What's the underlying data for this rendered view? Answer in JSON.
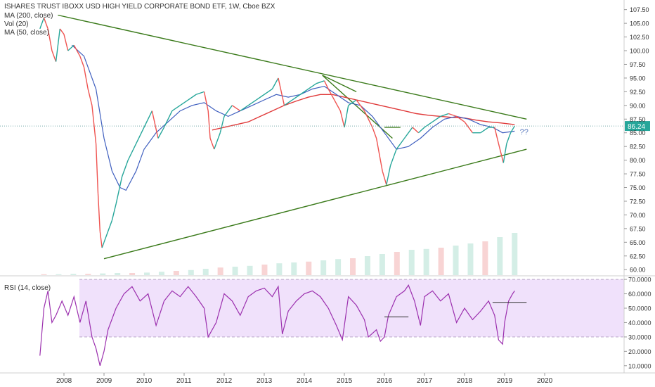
{
  "chart_data": {
    "type": "line",
    "title": "ISHARES TRUST IBOXX USD HIGH YIELD CORPORATE BOND ETF, 1W, Cboe BZX",
    "indicators": [
      "MA (200, close)",
      "Vol (20)",
      "MA (50, close)"
    ],
    "x_ticks": [
      "2008",
      "2009",
      "2010",
      "2011",
      "2012",
      "2013",
      "2014",
      "2015",
      "2016",
      "2017",
      "2018",
      "2019",
      "2020"
    ],
    "price_axis": {
      "range": [
        59,
        109
      ],
      "ticks": [
        "107.50",
        "105.00",
        "102.50",
        "100.00",
        "97.50",
        "95.00",
        "92.50",
        "90.00",
        "87.50",
        "85.00",
        "82.50",
        "80.00",
        "77.50",
        "75.00",
        "72.50",
        "70.00",
        "67.50",
        "65.00",
        "62.50",
        "60.00"
      ],
      "last_price_label": "86.24",
      "last_price": 86.24
    },
    "price_series": {
      "name": "HYG",
      "points": [
        [
          2007.4,
          104
        ],
        [
          2007.5,
          106
        ],
        [
          2007.6,
          104
        ],
        [
          2007.7,
          100
        ],
        [
          2007.8,
          98
        ],
        [
          2007.9,
          104
        ],
        [
          2008.0,
          103
        ],
        [
          2008.1,
          100
        ],
        [
          2008.25,
          101
        ],
        [
          2008.4,
          99
        ],
        [
          2008.5,
          97
        ],
        [
          2008.6,
          93
        ],
        [
          2008.7,
          90
        ],
        [
          2008.8,
          83
        ],
        [
          2008.85,
          74
        ],
        [
          2008.9,
          67
        ],
        [
          2008.95,
          64
        ],
        [
          2009.0,
          65
        ],
        [
          2009.1,
          67
        ],
        [
          2009.2,
          69
        ],
        [
          2009.3,
          72
        ],
        [
          2009.45,
          77
        ],
        [
          2009.6,
          80
        ],
        [
          2009.8,
          83
        ],
        [
          2010.0,
          86
        ],
        [
          2010.2,
          89
        ],
        [
          2010.35,
          84
        ],
        [
          2010.5,
          86
        ],
        [
          2010.7,
          89
        ],
        [
          2010.9,
          90
        ],
        [
          2011.1,
          91
        ],
        [
          2011.3,
          92
        ],
        [
          2011.5,
          92.5
        ],
        [
          2011.6,
          89
        ],
        [
          2011.65,
          84
        ],
        [
          2011.75,
          82
        ],
        [
          2011.9,
          85
        ],
        [
          2012.0,
          88
        ],
        [
          2012.2,
          90
        ],
        [
          2012.4,
          89
        ],
        [
          2012.6,
          90
        ],
        [
          2012.8,
          91
        ],
        [
          2013.0,
          92
        ],
        [
          2013.2,
          93
        ],
        [
          2013.35,
          95
        ],
        [
          2013.5,
          90
        ],
        [
          2013.7,
          91
        ],
        [
          2013.9,
          92
        ],
        [
          2014.1,
          93
        ],
        [
          2014.3,
          94
        ],
        [
          2014.5,
          94.5
        ],
        [
          2014.6,
          93
        ],
        [
          2014.75,
          91
        ],
        [
          2014.9,
          89
        ],
        [
          2015.0,
          86
        ],
        [
          2015.1,
          90
        ],
        [
          2015.3,
          91
        ],
        [
          2015.5,
          89
        ],
        [
          2015.7,
          86
        ],
        [
          2015.8,
          84
        ],
        [
          2015.95,
          78
        ],
        [
          2016.05,
          75.5
        ],
        [
          2016.15,
          79
        ],
        [
          2016.3,
          82
        ],
        [
          2016.5,
          84
        ],
        [
          2016.7,
          86
        ],
        [
          2016.85,
          85
        ],
        [
          2017.0,
          86
        ],
        [
          2017.2,
          87
        ],
        [
          2017.4,
          88
        ],
        [
          2017.6,
          88.5
        ],
        [
          2017.8,
          88
        ],
        [
          2018.0,
          87
        ],
        [
          2018.2,
          85
        ],
        [
          2018.4,
          85
        ],
        [
          2018.6,
          86
        ],
        [
          2018.75,
          86
        ],
        [
          2018.85,
          83
        ],
        [
          2018.97,
          79.5
        ],
        [
          2019.05,
          83
        ],
        [
          2019.15,
          85
        ],
        [
          2019.25,
          86.24
        ]
      ]
    },
    "ma200_series": {
      "name": "MA (200, close)",
      "points": [
        [
          2011.7,
          85.5
        ],
        [
          2012.0,
          86
        ],
        [
          2012.3,
          86.5
        ],
        [
          2012.6,
          87
        ],
        [
          2012.9,
          88
        ],
        [
          2013.2,
          89
        ],
        [
          2013.5,
          90
        ],
        [
          2013.8,
          90.8
        ],
        [
          2014.1,
          91.5
        ],
        [
          2014.4,
          92
        ],
        [
          2014.7,
          92
        ],
        [
          2015.0,
          91.5
        ],
        [
          2015.3,
          91
        ],
        [
          2015.6,
          90.5
        ],
        [
          2015.9,
          90
        ],
        [
          2016.2,
          89.5
        ],
        [
          2016.5,
          89
        ],
        [
          2016.8,
          88.5
        ],
        [
          2017.1,
          88.2
        ],
        [
          2017.4,
          88
        ],
        [
          2017.7,
          87.8
        ],
        [
          2018.0,
          87.7
        ],
        [
          2018.3,
          87.3
        ],
        [
          2018.6,
          87
        ],
        [
          2018.9,
          86.8
        ],
        [
          2019.25,
          86.5
        ]
      ]
    },
    "ma50_series": {
      "name": "MA (50, close)",
      "points": [
        [
          2008.2,
          101
        ],
        [
          2008.5,
          99
        ],
        [
          2008.8,
          93
        ],
        [
          2009.0,
          84
        ],
        [
          2009.2,
          78
        ],
        [
          2009.4,
          75
        ],
        [
          2009.55,
          74.5
        ],
        [
          2009.8,
          78
        ],
        [
          2010.0,
          82
        ],
        [
          2010.3,
          85
        ],
        [
          2010.6,
          87
        ],
        [
          2010.9,
          89
        ],
        [
          2011.2,
          90
        ],
        [
          2011.5,
          90.5
        ],
        [
          2011.8,
          89
        ],
        [
          2012.1,
          88
        ],
        [
          2012.4,
          89
        ],
        [
          2012.7,
          90
        ],
        [
          2013.0,
          91
        ],
        [
          2013.3,
          92
        ],
        [
          2013.6,
          91.5
        ],
        [
          2013.9,
          92
        ],
        [
          2014.2,
          93
        ],
        [
          2014.5,
          93.5
        ],
        [
          2014.8,
          92
        ],
        [
          2015.1,
          90.5
        ],
        [
          2015.4,
          90
        ],
        [
          2015.7,
          88
        ],
        [
          2016.0,
          85
        ],
        [
          2016.3,
          82
        ],
        [
          2016.6,
          82.5
        ],
        [
          2016.9,
          84
        ],
        [
          2017.2,
          86
        ],
        [
          2017.5,
          87.5
        ],
        [
          2017.8,
          88
        ],
        [
          2018.1,
          87.5
        ],
        [
          2018.4,
          86.5
        ],
        [
          2018.7,
          86
        ],
        [
          2018.95,
          85
        ],
        [
          2019.25,
          85.3
        ]
      ]
    },
    "trendlines": [
      {
        "name": "upper-resistance",
        "points": [
          [
            2007.85,
            106.5
          ],
          [
            2019.55,
            87.5
          ]
        ]
      },
      {
        "name": "lower-support",
        "points": [
          [
            2009.0,
            62
          ],
          [
            2019.55,
            82
          ]
        ]
      },
      {
        "name": "mid-resistance",
        "points": [
          [
            2014.45,
            95.5
          ],
          [
            2015.3,
            92.5
          ]
        ]
      },
      {
        "name": "descending-channel",
        "points": [
          [
            2014.45,
            95.5
          ],
          [
            2016.2,
            84
          ]
        ]
      },
      {
        "name": "flag-upper",
        "points": [
          [
            2016.0,
            86
          ],
          [
            2016.4,
            86
          ]
        ]
      }
    ],
    "annotation": "??",
    "volume_series": {
      "name": "Vol (20)",
      "values_relative": [
        0.02,
        0.02,
        0.03,
        0.03,
        0.04,
        0.05,
        0.05,
        0.06,
        0.08,
        0.1,
        0.12,
        0.15,
        0.18,
        0.2,
        0.22,
        0.25,
        0.28,
        0.3,
        0.32,
        0.35,
        0.38,
        0.4,
        0.45,
        0.5,
        0.55,
        0.6,
        0.62,
        0.65,
        0.7,
        0.75,
        0.8,
        0.9,
        1.0
      ]
    },
    "rsi": {
      "label": "RSI (14, close)",
      "range": [
        5,
        72
      ],
      "ticks": [
        "70.0000",
        "60.0000",
        "50.0000",
        "40.0000",
        "30.0000",
        "20.0000",
        "10.0000"
      ],
      "band": [
        30,
        70
      ],
      "points": [
        [
          2007.4,
          17
        ],
        [
          2007.5,
          50
        ],
        [
          2007.6,
          62
        ],
        [
          2007.7,
          40
        ],
        [
          2007.8,
          45
        ],
        [
          2007.95,
          55
        ],
        [
          2008.1,
          45
        ],
        [
          2008.25,
          58
        ],
        [
          2008.4,
          40
        ],
        [
          2008.55,
          55
        ],
        [
          2008.7,
          30
        ],
        [
          2008.8,
          22
        ],
        [
          2008.9,
          10
        ],
        [
          2009.0,
          20
        ],
        [
          2009.1,
          35
        ],
        [
          2009.3,
          50
        ],
        [
          2009.5,
          60
        ],
        [
          2009.7,
          65
        ],
        [
          2009.9,
          55
        ],
        [
          2010.1,
          60
        ],
        [
          2010.3,
          38
        ],
        [
          2010.5,
          55
        ],
        [
          2010.7,
          62
        ],
        [
          2010.9,
          58
        ],
        [
          2011.1,
          65
        ],
        [
          2011.3,
          58
        ],
        [
          2011.5,
          50
        ],
        [
          2011.6,
          30
        ],
        [
          2011.8,
          40
        ],
        [
          2012.0,
          60
        ],
        [
          2012.2,
          55
        ],
        [
          2012.4,
          45
        ],
        [
          2012.6,
          58
        ],
        [
          2012.8,
          62
        ],
        [
          2013.0,
          64
        ],
        [
          2013.2,
          58
        ],
        [
          2013.35,
          65
        ],
        [
          2013.45,
          32
        ],
        [
          2013.6,
          48
        ],
        [
          2013.8,
          55
        ],
        [
          2014.0,
          60
        ],
        [
          2014.2,
          62
        ],
        [
          2014.4,
          58
        ],
        [
          2014.6,
          50
        ],
        [
          2014.8,
          38
        ],
        [
          2014.95,
          28
        ],
        [
          2015.1,
          58
        ],
        [
          2015.3,
          52
        ],
        [
          2015.5,
          42
        ],
        [
          2015.6,
          30
        ],
        [
          2015.8,
          35
        ],
        [
          2015.9,
          27
        ],
        [
          2016.0,
          30
        ],
        [
          2016.1,
          45
        ],
        [
          2016.3,
          58
        ],
        [
          2016.5,
          62
        ],
        [
          2016.6,
          66
        ],
        [
          2016.75,
          55
        ],
        [
          2016.9,
          38
        ],
        [
          2017.0,
          58
        ],
        [
          2017.2,
          62
        ],
        [
          2017.4,
          55
        ],
        [
          2017.6,
          60
        ],
        [
          2017.8,
          40
        ],
        [
          2018.0,
          50
        ],
        [
          2018.2,
          42
        ],
        [
          2018.4,
          48
        ],
        [
          2018.6,
          55
        ],
        [
          2018.75,
          45
        ],
        [
          2018.85,
          28
        ],
        [
          2018.95,
          25
        ],
        [
          2019.0,
          40
        ],
        [
          2019.1,
          55
        ],
        [
          2019.2,
          60
        ],
        [
          2019.25,
          62
        ]
      ],
      "segments": [
        {
          "name": "rsi-level-mid",
          "points": [
            [
              2016.0,
              44
            ],
            [
              2016.6,
              44
            ]
          ]
        },
        {
          "name": "rsi-level-high",
          "points": [
            [
              2018.7,
              54
            ],
            [
              2019.55,
              54
            ]
          ]
        }
      ]
    }
  }
}
